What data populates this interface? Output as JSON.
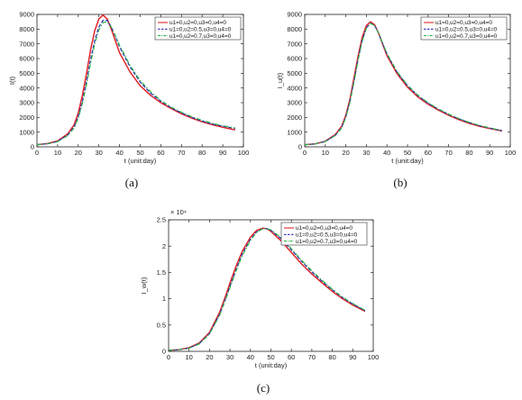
{
  "chart_data": [
    {
      "type": "line",
      "caption": "(a)",
      "xlabel": "t (unit:day)",
      "ylabel": "I(t)",
      "multiplier": "",
      "xlim": [
        0,
        100
      ],
      "ylim": [
        0,
        9000
      ],
      "xticks": [
        0,
        10,
        20,
        30,
        40,
        50,
        60,
        70,
        80,
        90,
        100
      ],
      "yticks": [
        0,
        1000,
        2000,
        3000,
        4000,
        5000,
        6000,
        7000,
        8000,
        9000
      ],
      "legend_position": "top-right",
      "series": [
        {
          "name": "u1=0,u2=0,u3=0,u4=0",
          "color": "#e0262a",
          "dash": "solid",
          "x": [
            0,
            5,
            10,
            15,
            18,
            20,
            22,
            24,
            26,
            28,
            30,
            32,
            34,
            36,
            38,
            40,
            45,
            50,
            55,
            60,
            65,
            70,
            75,
            80,
            85,
            90,
            96
          ],
          "y": [
            150,
            220,
            400,
            900,
            1500,
            2300,
            3500,
            5000,
            6600,
            7900,
            8700,
            8950,
            8700,
            8000,
            7200,
            6400,
            5100,
            4150,
            3500,
            3000,
            2600,
            2250,
            1950,
            1700,
            1500,
            1330,
            1150
          ]
        },
        {
          "name": "u1=0,u2=0.5,u3=0,u4=0",
          "color": "#2b2ab8",
          "dash": "4,2",
          "x": [
            0,
            5,
            10,
            15,
            18,
            20,
            22,
            24,
            26,
            28,
            30,
            32,
            34,
            36,
            38,
            40,
            45,
            50,
            55,
            60,
            65,
            70,
            75,
            80,
            85,
            90,
            96
          ],
          "y": [
            150,
            210,
            370,
            820,
            1350,
            2050,
            3100,
            4450,
            5950,
            7250,
            8150,
            8600,
            8600,
            8150,
            7500,
            6800,
            5450,
            4400,
            3650,
            3100,
            2650,
            2300,
            2000,
            1750,
            1550,
            1400,
            1250
          ]
        },
        {
          "name": "u1=0,u2=0.7,u3=0,u4=0",
          "color": "#2db34a",
          "dash": "5,2,1.5,2",
          "x": [
            0,
            5,
            10,
            15,
            18,
            20,
            22,
            24,
            26,
            28,
            30,
            32,
            34,
            36,
            38,
            40,
            45,
            50,
            55,
            60,
            65,
            70,
            75,
            80,
            85,
            90,
            96
          ],
          "y": [
            150,
            200,
            350,
            780,
            1280,
            1950,
            2950,
            4250,
            5700,
            7000,
            7950,
            8450,
            8500,
            8150,
            7550,
            6900,
            5550,
            4500,
            3750,
            3150,
            2700,
            2350,
            2050,
            1800,
            1600,
            1430,
            1280
          ]
        }
      ]
    },
    {
      "type": "line",
      "caption": "(b)",
      "xlabel": "t (unit:day)",
      "ylabel": "I_u(t)",
      "multiplier": "",
      "xlim": [
        0,
        100
      ],
      "ylim": [
        0,
        9000
      ],
      "xticks": [
        0,
        10,
        20,
        30,
        40,
        50,
        60,
        70,
        80,
        90,
        100
      ],
      "yticks": [
        0,
        1000,
        2000,
        3000,
        4000,
        5000,
        6000,
        7000,
        8000,
        9000
      ],
      "legend_position": "top-right",
      "series": [
        {
          "name": "u1=0,u2=0,u3=0,u4=0",
          "color": "#e0262a",
          "dash": "solid",
          "x": [
            0,
            5,
            10,
            15,
            18,
            20,
            22,
            24,
            26,
            28,
            30,
            32,
            34,
            36,
            38,
            40,
            45,
            50,
            55,
            60,
            65,
            70,
            75,
            80,
            85,
            90,
            96
          ],
          "y": [
            150,
            200,
            380,
            850,
            1400,
            2150,
            3250,
            4700,
            6200,
            7450,
            8250,
            8500,
            8300,
            7700,
            6950,
            6200,
            4950,
            4050,
            3400,
            2900,
            2500,
            2150,
            1850,
            1600,
            1400,
            1250,
            1080
          ]
        },
        {
          "name": "u1=0,u2=0.5,u3=0,u4=0",
          "color": "#2b2ab8",
          "dash": "4,2",
          "x": [
            0,
            5,
            10,
            15,
            18,
            20,
            22,
            24,
            26,
            28,
            30,
            32,
            34,
            36,
            38,
            40,
            45,
            50,
            55,
            60,
            65,
            70,
            75,
            80,
            85,
            90,
            96
          ],
          "y": [
            150,
            195,
            360,
            800,
            1320,
            2050,
            3100,
            4500,
            6000,
            7250,
            8100,
            8400,
            8250,
            7700,
            7000,
            6300,
            5050,
            4150,
            3480,
            2960,
            2550,
            2200,
            1900,
            1650,
            1440,
            1270,
            1100
          ]
        },
        {
          "name": "u1=0,u2=0.7,u3=0,u4=0",
          "color": "#2db34a",
          "dash": "5,2,1.5,2",
          "x": [
            0,
            5,
            10,
            15,
            18,
            20,
            22,
            24,
            26,
            28,
            30,
            32,
            34,
            36,
            38,
            40,
            45,
            50,
            55,
            60,
            65,
            70,
            75,
            80,
            85,
            90,
            96
          ],
          "y": [
            150,
            190,
            350,
            780,
            1280,
            2000,
            3030,
            4420,
            5920,
            7180,
            8050,
            8380,
            8250,
            7720,
            7030,
            6350,
            5100,
            4200,
            3520,
            3000,
            2580,
            2230,
            1920,
            1670,
            1460,
            1290,
            1110
          ]
        }
      ]
    },
    {
      "type": "line",
      "caption": "(c)",
      "xlabel": "t (unit:day)",
      "ylabel": "I_w(t)",
      "multiplier": "× 10⁴",
      "xlim": [
        0,
        100
      ],
      "ylim": [
        0,
        2.5
      ],
      "xticks": [
        0,
        10,
        20,
        30,
        40,
        50,
        60,
        70,
        80,
        90,
        100
      ],
      "yticks": [
        0,
        0.5,
        1,
        1.5,
        2,
        2.5
      ],
      "legend_position": "top-right",
      "series": [
        {
          "name": "u1=0,u2=0,u3=0,u4=0",
          "color": "#e0262a",
          "dash": "solid",
          "x": [
            0,
            5,
            10,
            15,
            20,
            25,
            28,
            30,
            33,
            36,
            40,
            43,
            46,
            48,
            50,
            55,
            60,
            65,
            70,
            75,
            80,
            85,
            90,
            96
          ],
          "y": [
            0.02,
            0.03,
            0.07,
            0.16,
            0.36,
            0.75,
            1.07,
            1.3,
            1.62,
            1.9,
            2.17,
            2.3,
            2.34,
            2.33,
            2.28,
            2.1,
            1.88,
            1.66,
            1.47,
            1.3,
            1.14,
            1.0,
            0.88,
            0.76
          ]
        },
        {
          "name": "u1=0,u2=0.5,u3=0,u4=0",
          "color": "#2b2ab8",
          "dash": "4,2",
          "x": [
            0,
            5,
            10,
            15,
            20,
            25,
            28,
            30,
            33,
            36,
            40,
            43,
            46,
            48,
            50,
            55,
            60,
            65,
            70,
            75,
            80,
            85,
            90,
            96
          ],
          "y": [
            0.02,
            0.03,
            0.06,
            0.15,
            0.34,
            0.71,
            1.02,
            1.24,
            1.56,
            1.85,
            2.13,
            2.27,
            2.33,
            2.33,
            2.3,
            2.14,
            1.93,
            1.71,
            1.51,
            1.33,
            1.17,
            1.02,
            0.9,
            0.77
          ]
        },
        {
          "name": "u1=0,u2=0.7,u3=0,u4=0",
          "color": "#2db34a",
          "dash": "5,2,1.5,2",
          "x": [
            0,
            5,
            10,
            15,
            20,
            25,
            28,
            30,
            33,
            36,
            40,
            43,
            46,
            48,
            50,
            55,
            60,
            65,
            70,
            75,
            80,
            85,
            90,
            96
          ],
          "y": [
            0.02,
            0.03,
            0.06,
            0.14,
            0.33,
            0.69,
            1.0,
            1.21,
            1.53,
            1.82,
            2.11,
            2.26,
            2.33,
            2.33,
            2.31,
            2.16,
            1.95,
            1.73,
            1.53,
            1.35,
            1.18,
            1.03,
            0.91,
            0.78
          ]
        }
      ]
    }
  ]
}
